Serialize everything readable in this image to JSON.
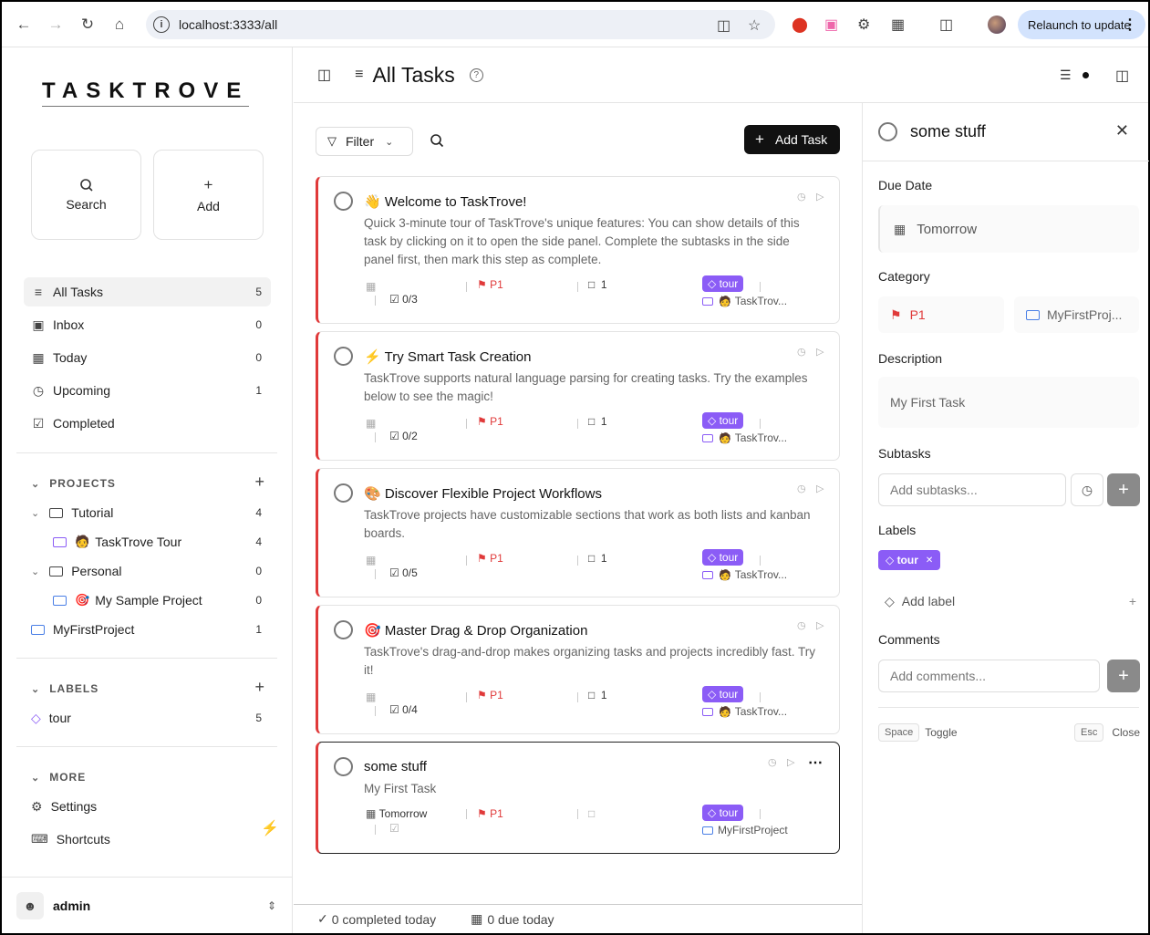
{
  "browser": {
    "url": "localhost:3333/all",
    "relaunch_label": "Relaunch to update"
  },
  "sidebar": {
    "logo": "TASKTROVE",
    "search_label": "Search",
    "add_label": "Add",
    "nav": [
      {
        "label": "All Tasks",
        "count": "5"
      },
      {
        "label": "Inbox",
        "count": "0"
      },
      {
        "label": "Today",
        "count": "0"
      },
      {
        "label": "Upcoming",
        "count": "1"
      },
      {
        "label": "Completed",
        "count": ""
      }
    ],
    "projects_heading": "PROJECTS",
    "projects": [
      {
        "label": "Tutorial",
        "count": "4"
      },
      {
        "label": "TaskTrove Tour",
        "count": "4"
      },
      {
        "label": "Personal",
        "count": "0"
      },
      {
        "label": "My Sample Project",
        "count": "0"
      },
      {
        "label": "MyFirstProject",
        "count": "1"
      }
    ],
    "labels_heading": "LABELS",
    "labels": [
      {
        "label": "tour",
        "count": "5"
      }
    ],
    "more_heading": "MORE",
    "settings_label": "Settings",
    "shortcuts_label": "Shortcuts",
    "user_name": "admin"
  },
  "header": {
    "title": "All Tasks"
  },
  "toolbar": {
    "filter_label": "Filter",
    "add_task_label": "Add Task"
  },
  "tasks": [
    {
      "emoji": "👋",
      "title": "Welcome to TaskTrove!",
      "description": "Quick 3-minute tour of TaskTrove's unique features: You can show details of this task by clicking on it to open the side panel. Complete the subtasks in the side panel first, then mark this step as complete.",
      "subtasks": "0/3",
      "priority": "P1",
      "comments": "1",
      "label": "tour",
      "project": "TaskTrov..."
    },
    {
      "emoji": "⚡",
      "title": "Try Smart Task Creation",
      "description": "TaskTrove supports natural language parsing for creating tasks. Try the examples below to see the magic!",
      "subtasks": "0/2",
      "priority": "P1",
      "comments": "1",
      "label": "tour",
      "project": "TaskTrov..."
    },
    {
      "emoji": "🎨",
      "title": "Discover Flexible Project Workflows",
      "description": "TaskTrove projects have customizable sections that work as both lists and kanban boards.",
      "subtasks": "0/5",
      "priority": "P1",
      "comments": "1",
      "label": "tour",
      "project": "TaskTrov..."
    },
    {
      "emoji": "🎯",
      "title": "Master Drag & Drop Organization",
      "description": "TaskTrove's drag-and-drop makes organizing tasks and projects incredibly fast. Try it!",
      "subtasks": "0/4",
      "priority": "P1",
      "comments": "1",
      "label": "tour",
      "project": "TaskTrov..."
    },
    {
      "emoji": "",
      "title": "some stuff",
      "description": "My First Task",
      "due": "Tomorrow",
      "priority": "P1",
      "label": "tour",
      "project": "MyFirstProject"
    }
  ],
  "footer": {
    "completed": "0 completed today",
    "due": "0 due today"
  },
  "panel": {
    "title": "some stuff",
    "due_heading": "Due Date",
    "due_value": "Tomorrow",
    "category_heading": "Category",
    "priority": "P1",
    "project": "MyFirstProj...",
    "description_heading": "Description",
    "description": "My First Task",
    "subtasks_heading": "Subtasks",
    "subtasks_placeholder": "Add subtasks...",
    "labels_heading": "Labels",
    "label": "tour",
    "add_label": "Add label",
    "comments_heading": "Comments",
    "comments_placeholder": "Add comments...",
    "space_key": "Space",
    "space_action": "Toggle",
    "esc_key": "Esc",
    "esc_action": "Close"
  },
  "colors": {
    "priority": "#e03a3a",
    "label": "#8b5cf6",
    "project": "#4a7fe6"
  }
}
